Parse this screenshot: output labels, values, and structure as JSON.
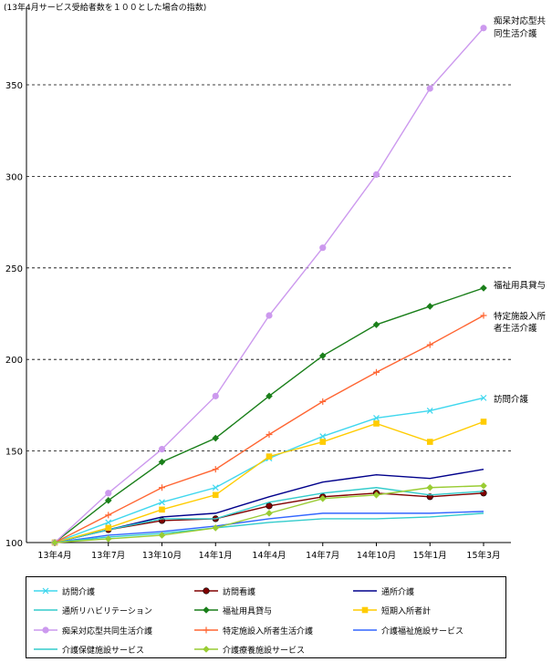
{
  "chart_data": {
    "type": "line",
    "note": "(13年4月サービス受給者数を１００とした場合の指数)",
    "categories": [
      "13年4月",
      "13年7月",
      "13年10月",
      "14年1月",
      "14年4月",
      "14年7月",
      "14年10月",
      "15年1月",
      "15年3月"
    ],
    "y_ticks": [
      "100",
      "150",
      "200",
      "250",
      "300",
      "350"
    ],
    "ylim": [
      100,
      350
    ],
    "grid": "horizontal dashed",
    "legend_position": "bottom",
    "series": [
      {
        "name": "訪問介護",
        "color": "#3fd7ee",
        "marker": "x",
        "label": "訪問介護",
        "values": [
          100,
          111,
          122,
          130,
          146,
          158,
          168,
          172,
          179
        ]
      },
      {
        "name": "訪問看護",
        "color": "#800000",
        "marker": "circle",
        "label": "",
        "values": [
          100,
          107,
          112,
          113,
          120,
          125,
          127,
          125,
          127
        ]
      },
      {
        "name": "通所介護",
        "color": "#00008b",
        "marker": "none",
        "label": "",
        "values": [
          100,
          107,
          114,
          116,
          125,
          133,
          137,
          135,
          140
        ]
      },
      {
        "name": "通所リハビリテーション",
        "color": "#33cccc",
        "marker": "none",
        "label": "",
        "values": [
          100,
          107,
          113,
          113,
          122,
          127,
          130,
          126,
          128
        ]
      },
      {
        "name": "福祉用具貸与",
        "color": "#1a7f1a",
        "marker": "diamond",
        "label": "福祉用具貸与",
        "values": [
          100,
          123,
          144,
          157,
          180,
          202,
          219,
          229,
          239
        ]
      },
      {
        "name": "短期入所者計",
        "color": "#ffcc00",
        "marker": "square",
        "label": "",
        "values": [
          100,
          108,
          118,
          126,
          147,
          155,
          165,
          155,
          166
        ]
      },
      {
        "name": "痴呆対応型共同生活介護",
        "color": "#cc99ee",
        "marker": "circle",
        "label": "痴呆対応型共同生活介護",
        "values": [
          100,
          127,
          151,
          180,
          224,
          261,
          301,
          348,
          381
        ]
      },
      {
        "name": "特定施設入所者生活介護",
        "color": "#ff6633",
        "marker": "plus",
        "label": "特定施設入所者生活介護",
        "values": [
          100,
          115,
          130,
          140,
          159,
          177,
          193,
          208,
          224
        ]
      },
      {
        "name": "介護福祉施設サービス",
        "color": "#3366ff",
        "marker": "none",
        "label": "",
        "values": [
          100,
          104,
          106,
          109,
          113,
          116,
          116,
          116,
          117
        ]
      },
      {
        "name": "介護保健施設サービス",
        "color": "#33cccc",
        "marker": "none",
        "label": "",
        "values": [
          100,
          103,
          105,
          108,
          111,
          113,
          113,
          114,
          116
        ]
      },
      {
        "name": "介護療養施設サービス",
        "color": "#99cc33",
        "marker": "diamond",
        "label": "",
        "values": [
          100,
          102,
          104,
          108,
          116,
          124,
          126,
          130,
          131
        ]
      }
    ]
  },
  "annotations": {
    "dementia_line1": "痴呆対応型共",
    "dementia_line2": "同生活介護",
    "welfare": "福祉用具貸与",
    "facility_line1": "特定施設入所",
    "facility_line2": "者生活介護",
    "visit": "訪問介護"
  }
}
